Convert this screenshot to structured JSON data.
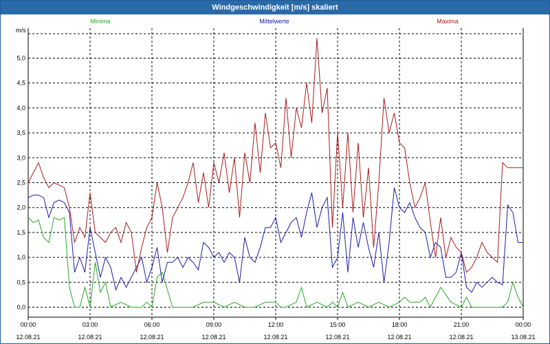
{
  "window": {
    "title": "Windgeschwindigkeit [m/s] skaliert"
  },
  "chart_data": {
    "type": "line",
    "title": "Windgeschwindigkeit [m/s] skaliert",
    "ylabel": "m/s",
    "xlabel": "",
    "ylim": [
      -0.2,
      5.6
    ],
    "xlim": [
      0,
      24
    ],
    "yticks": [
      0.0,
      0.5,
      1.0,
      1.5,
      2.0,
      2.5,
      3.0,
      3.5,
      4.0,
      4.5,
      5.0
    ],
    "ytick_labels": [
      "0,0",
      "0,5",
      "1,0",
      "1,5",
      "2,0",
      "2,5",
      "3,0",
      "3,5",
      "4,0",
      "4,5",
      "5,0"
    ],
    "xticks": [
      {
        "x": 0,
        "time": "00:00",
        "date": "12.08.21"
      },
      {
        "x": 3,
        "time": "03:00",
        "date": "12.08.21"
      },
      {
        "x": 6,
        "time": "06:00",
        "date": "12.08.21"
      },
      {
        "x": 9,
        "time": "09:00",
        "date": "12.08.21"
      },
      {
        "x": 12,
        "time": "12:00",
        "date": "12.08.21"
      },
      {
        "x": 15,
        "time": "15:00",
        "date": "12.08.21"
      },
      {
        "x": 18,
        "time": "18:00",
        "date": "12.08.21"
      },
      {
        "x": 21,
        "time": "21:00",
        "date": "12.08.21"
      },
      {
        "x": 24,
        "time": "00:00",
        "date": "13.08.21"
      }
    ],
    "grid": true,
    "legend_position": "top",
    "series": [
      {
        "name": "Minima",
        "color": "#22aa22",
        "x": [
          0,
          0.25,
          0.5,
          0.75,
          1,
          1.25,
          1.5,
          1.75,
          2,
          2.25,
          2.5,
          2.75,
          3,
          3.25,
          3.5,
          3.75,
          4,
          4.5,
          5,
          5.5,
          5.75,
          6,
          6.25,
          6.5,
          7,
          7.5,
          8,
          8.5,
          9,
          9.5,
          10,
          10.5,
          11,
          11.5,
          12,
          12.25,
          12.5,
          13,
          13.25,
          13.5,
          14,
          14.5,
          14.75,
          15,
          15.25,
          15.5,
          16,
          16.5,
          17,
          17.5,
          18,
          18.25,
          18.5,
          19,
          19.25,
          19.5,
          20,
          20.5,
          21,
          21.25,
          21.5,
          22,
          22.5,
          23,
          23.25,
          23.5,
          23.75,
          24
        ],
        "y": [
          1.8,
          1.7,
          1.75,
          1.4,
          1.3,
          1.8,
          1.75,
          1.8,
          0.4,
          0.0,
          0.0,
          0.4,
          0.0,
          0.9,
          0.3,
          0.5,
          0.0,
          0.1,
          0.0,
          0.0,
          0.1,
          0.0,
          0.6,
          0.7,
          0.0,
          0.0,
          0.0,
          0.1,
          0.1,
          0.0,
          0.1,
          0.0,
          0.0,
          0.1,
          0.1,
          0.0,
          0.0,
          0.1,
          0.4,
          0.0,
          0.1,
          0.0,
          0.1,
          0.0,
          0.3,
          0.0,
          0.1,
          0.0,
          0.1,
          0.0,
          0.1,
          0.2,
          0.1,
          0.1,
          0.2,
          0.0,
          0.4,
          0.1,
          0.0,
          0.2,
          0.0,
          0.0,
          0.0,
          0.0,
          0.1,
          0.5,
          0.2,
          0.0
        ]
      },
      {
        "name": "Mittelwerte",
        "color": "#1a1aaa",
        "x": [
          0,
          0.25,
          0.5,
          0.75,
          1,
          1.25,
          1.5,
          1.75,
          2,
          2.25,
          2.5,
          2.75,
          3,
          3.25,
          3.5,
          3.75,
          4,
          4.25,
          4.5,
          4.75,
          5,
          5.25,
          5.5,
          5.75,
          6,
          6.25,
          6.5,
          6.75,
          7,
          7.25,
          7.5,
          7.75,
          8,
          8.25,
          8.5,
          8.75,
          9,
          9.25,
          9.5,
          9.75,
          10,
          10.25,
          10.5,
          10.75,
          11,
          11.25,
          11.5,
          11.75,
          12,
          12.25,
          12.5,
          12.75,
          13,
          13.25,
          13.5,
          13.75,
          14,
          14.25,
          14.5,
          14.75,
          15,
          15.25,
          15.5,
          15.75,
          16,
          16.25,
          16.5,
          16.75,
          17,
          17.25,
          17.5,
          17.75,
          18,
          18.25,
          18.5,
          18.75,
          19,
          19.25,
          19.5,
          19.75,
          20,
          20.25,
          20.5,
          20.75,
          21,
          21.25,
          21.5,
          21.75,
          22,
          22.25,
          22.5,
          22.75,
          23,
          23.25,
          23.5,
          23.75,
          24
        ],
        "y": [
          2.2,
          2.25,
          2.25,
          2.2,
          1.8,
          2.1,
          2.15,
          2.1,
          1.9,
          0.7,
          1.0,
          0.7,
          1.6,
          1.1,
          0.6,
          1.0,
          0.8,
          0.35,
          0.6,
          0.4,
          0.6,
          0.8,
          1.0,
          0.5,
          0.8,
          1.2,
          0.5,
          0.9,
          0.9,
          1.0,
          0.8,
          1.0,
          0.9,
          0.75,
          1.3,
          1.2,
          1.0,
          1.1,
          0.9,
          1.1,
          1.0,
          0.5,
          1.4,
          1.0,
          0.9,
          1.2,
          1.6,
          1.6,
          1.8,
          1.3,
          1.5,
          1.7,
          1.8,
          1.4,
          1.9,
          2.3,
          1.6,
          2.0,
          2.2,
          0.8,
          1.0,
          1.9,
          0.7,
          1.8,
          1.2,
          1.7,
          1.2,
          0.8,
          1.5,
          0.5,
          1.3,
          2.4,
          2.0,
          1.9,
          2.1,
          1.8,
          1.6,
          1.5,
          1.0,
          1.3,
          1.2,
          0.6,
          0.6,
          0.7,
          1.1,
          0.4,
          0.3,
          0.5,
          0.4,
          0.5,
          0.6,
          0.5,
          0.45,
          2.05,
          1.9,
          1.3,
          1.3
        ]
      },
      {
        "name": "Maxima",
        "color": "#aa1a1a",
        "x": [
          0,
          0.25,
          0.5,
          0.75,
          1,
          1.25,
          1.5,
          1.75,
          2,
          2.25,
          2.5,
          2.75,
          3,
          3.25,
          3.5,
          3.75,
          4,
          4.25,
          4.5,
          4.75,
          5,
          5.25,
          5.5,
          5.75,
          6,
          6.25,
          6.5,
          6.75,
          7,
          7.25,
          7.5,
          7.75,
          8,
          8.25,
          8.5,
          8.75,
          9,
          9.25,
          9.5,
          9.75,
          10,
          10.25,
          10.5,
          10.75,
          11,
          11.25,
          11.5,
          11.75,
          12,
          12.25,
          12.5,
          12.75,
          13,
          13.25,
          13.5,
          13.75,
          14,
          14.25,
          14.5,
          14.75,
          15,
          15.25,
          15.5,
          15.75,
          16,
          16.25,
          16.5,
          16.75,
          17,
          17.25,
          17.5,
          17.75,
          18,
          18.25,
          18.5,
          18.75,
          19,
          19.25,
          19.5,
          19.75,
          20,
          20.25,
          20.5,
          20.75,
          21,
          21.25,
          21.5,
          21.75,
          22,
          22.25,
          22.5,
          22.75,
          23,
          23.25,
          23.5,
          23.75,
          24
        ],
        "y": [
          2.5,
          2.7,
          2.9,
          2.6,
          2.4,
          2.5,
          2.45,
          2.4,
          2.0,
          1.3,
          1.6,
          1.4,
          2.3,
          1.5,
          1.4,
          1.3,
          1.5,
          1.6,
          1.3,
          1.7,
          1.5,
          0.7,
          1.2,
          1.6,
          1.8,
          2.5,
          2.0,
          1.1,
          1.8,
          2.0,
          2.2,
          2.5,
          2.9,
          2.1,
          2.7,
          2.0,
          2.9,
          2.5,
          3.1,
          2.3,
          3.0,
          1.8,
          3.1,
          2.5,
          3.7,
          2.7,
          3.9,
          3.2,
          3.3,
          2.8,
          4.2,
          3.0,
          4.0,
          3.6,
          4.5,
          3.7,
          5.4,
          3.9,
          4.4,
          1.6,
          3.5,
          2.0,
          3.5,
          1.9,
          3.3,
          1.8,
          2.8,
          1.2,
          2.5,
          4.2,
          3.5,
          3.9,
          3.3,
          3.2,
          2.5,
          2.0,
          2.2,
          2.5,
          1.7,
          1.0,
          1.8,
          1.0,
          1.4,
          1.2,
          1.1,
          0.7,
          0.8,
          1.0,
          1.3,
          1.1,
          1.0,
          0.9,
          2.9,
          2.8,
          2.8,
          2.8,
          2.8
        ]
      }
    ]
  }
}
